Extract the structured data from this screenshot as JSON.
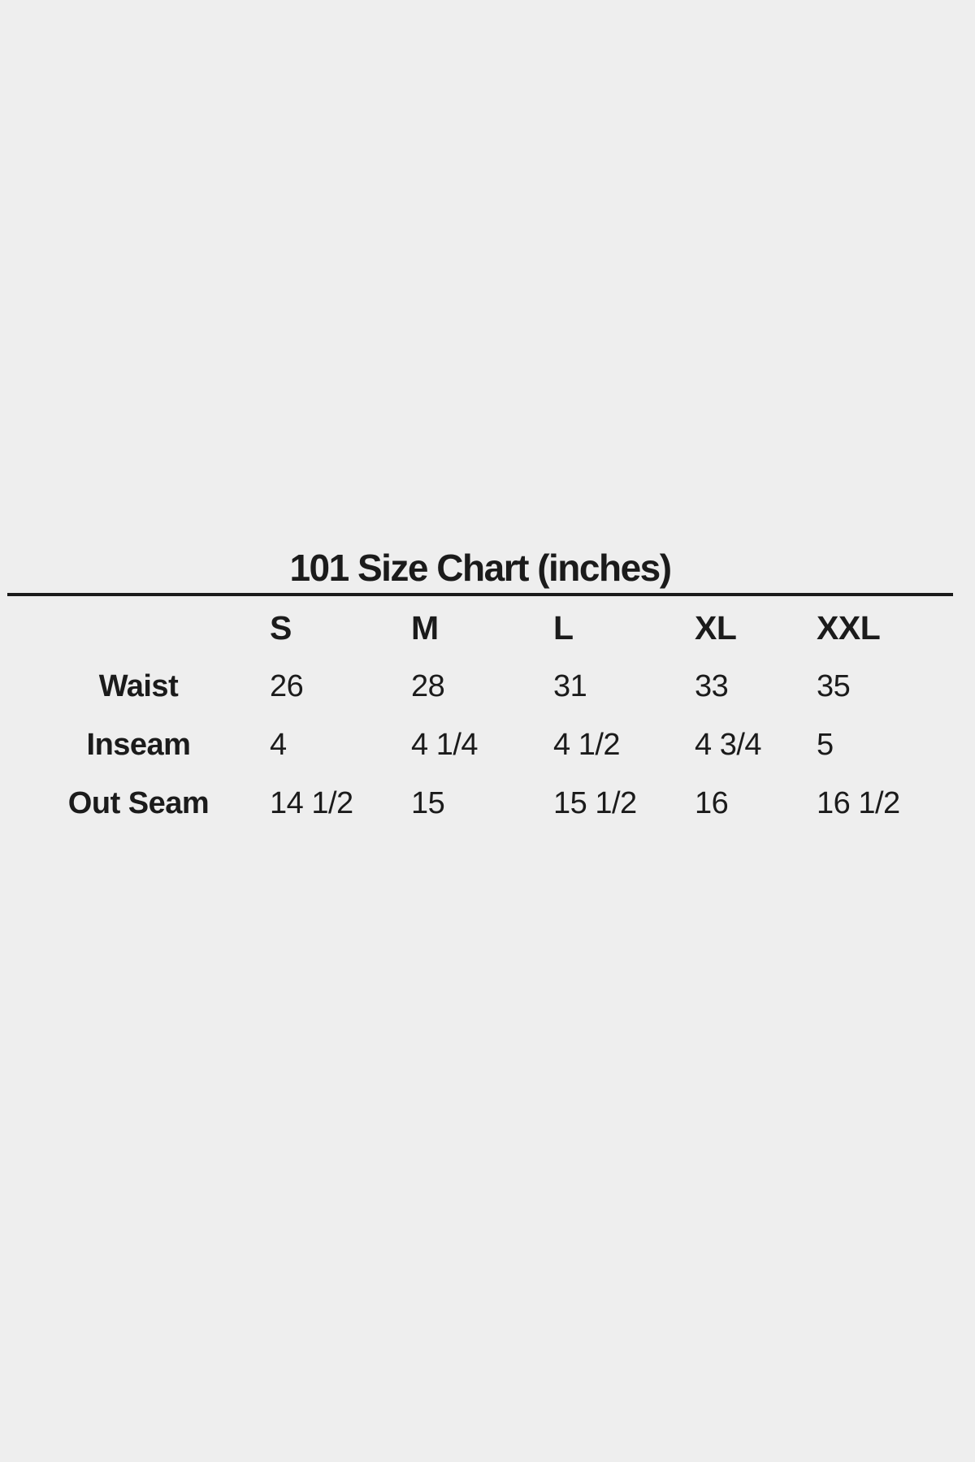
{
  "page": {
    "background_color": "#eeeeee",
    "text_color": "#1b1b1b",
    "rule_color": "#1a1a1a"
  },
  "chart_data": {
    "type": "table",
    "title": "101 Size Chart (inches)",
    "columns": [
      "S",
      "M",
      "L",
      "XL",
      "XXL"
    ],
    "rows": [
      {
        "label": "Waist",
        "values": [
          "26",
          "28",
          "31",
          "33",
          "35"
        ]
      },
      {
        "label": "Inseam",
        "values": [
          "4",
          "4 1/4",
          "4 1/2",
          "4 3/4",
          "5"
        ]
      },
      {
        "label": "Out Seam",
        "values": [
          "14 1/2",
          "15",
          "15 1/2",
          "16",
          "16 1/2"
        ]
      }
    ],
    "layout": {
      "title_centered": true,
      "rule_under_title": true,
      "value_alignment": "left",
      "label_alignment": "center"
    }
  }
}
